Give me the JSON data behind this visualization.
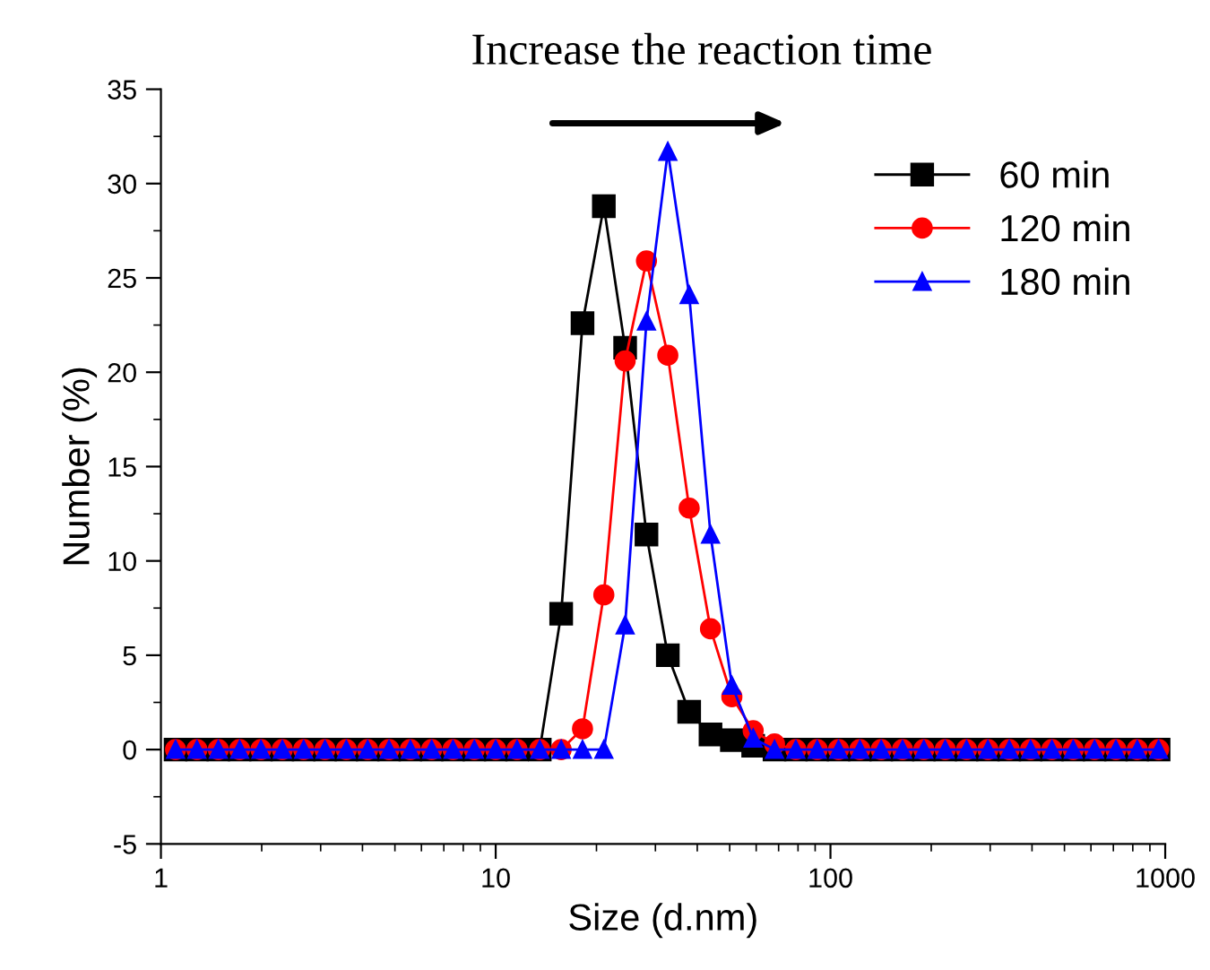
{
  "chart_data": {
    "type": "line",
    "title": "Increase the reaction time",
    "xlabel": "Size (d.nm)",
    "ylabel": "Number (%)",
    "x": [
      1.106,
      1.281,
      1.484,
      1.718,
      1.99,
      2.305,
      2.669,
      3.091,
      3.58,
      4.145,
      4.801,
      5.56,
      6.439,
      7.456,
      8.635,
      10.0,
      11.58,
      13.54,
      15.69,
      18.17,
      21.04,
      24.36,
      28.21,
      32.67,
      37.84,
      43.82,
      50.75,
      58.77,
      68.06,
      78.82,
      91.28,
      105.7,
      122.4,
      141.8,
      164.2,
      190.1,
      220.2,
      255.0,
      295.3,
      342.0,
      396.1,
      458.7,
      531.2,
      615.1,
      712.4,
      825.0,
      955.4
    ],
    "series": [
      {
        "name": "60 min",
        "color": "#000000",
        "marker": "square",
        "values": [
          0,
          0,
          0,
          0,
          0,
          0,
          0,
          0,
          0,
          0,
          0,
          0,
          0,
          0,
          0,
          0,
          0,
          0,
          7.2,
          22.6,
          28.8,
          21.3,
          11.4,
          5.0,
          2.0,
          0.8,
          0.5,
          0.2,
          0,
          0,
          0,
          0,
          0,
          0,
          0,
          0,
          0,
          0,
          0,
          0,
          0,
          0,
          0,
          0,
          0,
          0,
          0
        ]
      },
      {
        "name": "120 min",
        "color": "#ff0000",
        "marker": "circle",
        "values": [
          0,
          0,
          0,
          0,
          0,
          0,
          0,
          0,
          0,
          0,
          0,
          0,
          0,
          0,
          0,
          0,
          0,
          0,
          0,
          1.1,
          8.2,
          20.6,
          25.9,
          20.9,
          12.8,
          6.4,
          2.8,
          1.0,
          0.3,
          0,
          0,
          0,
          0,
          0,
          0,
          0,
          0,
          0,
          0,
          0,
          0,
          0,
          0,
          0,
          0,
          0,
          0
        ]
      },
      {
        "name": "180 min",
        "color": "#0000ff",
        "marker": "triangle",
        "values": [
          0,
          0,
          0,
          0,
          0,
          0,
          0,
          0,
          0,
          0,
          0,
          0,
          0,
          0,
          0,
          0,
          0,
          0,
          0,
          0,
          0,
          6.6,
          22.7,
          31.7,
          24.1,
          11.4,
          3.4,
          0.6,
          0,
          0,
          0,
          0,
          0,
          0,
          0,
          0,
          0,
          0,
          0,
          0,
          0,
          0,
          0,
          0,
          0,
          0,
          0
        ]
      }
    ],
    "log": "x",
    "xlim": [
      1,
      1000
    ],
    "xticks": [
      1,
      10,
      100,
      1000
    ],
    "ylim": [
      -5,
      35
    ],
    "yticks": [
      -5,
      0,
      5,
      10,
      15,
      20,
      25,
      30,
      35
    ],
    "legend": "top right",
    "grid": false,
    "line_style": "solid"
  }
}
